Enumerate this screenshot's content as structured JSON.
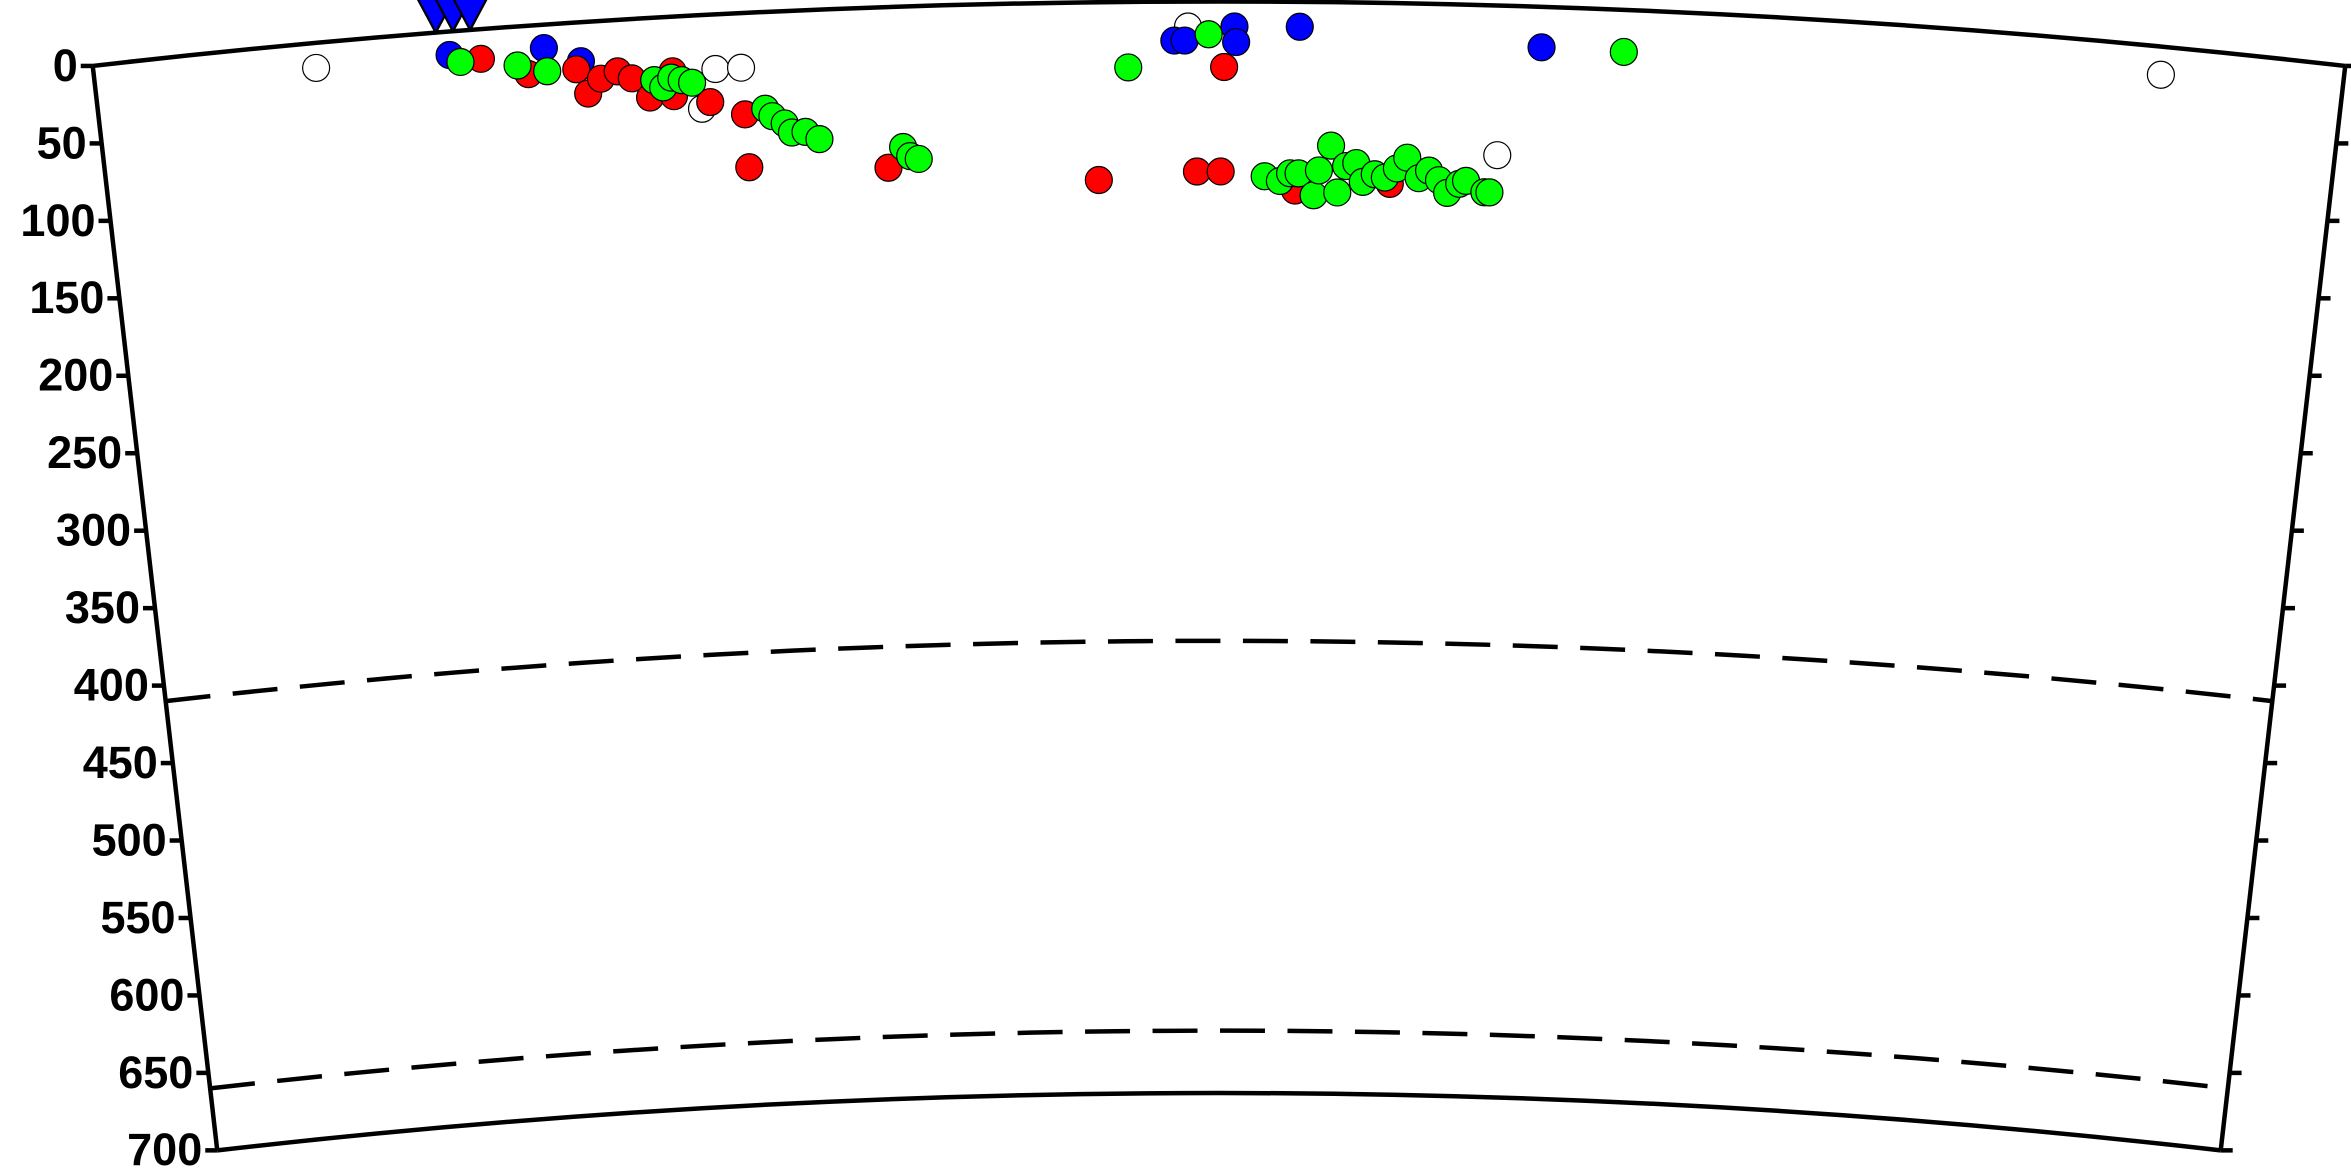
{
  "chart_data": {
    "type": "scatter",
    "xlim": [
      0,
      13.1
    ],
    "ylim": [
      0,
      700
    ],
    "yticks": [
      0,
      50,
      100,
      150,
      200,
      250,
      300,
      350,
      400,
      450,
      500,
      550,
      600,
      650,
      700
    ],
    "discontinuities": [
      410,
      660
    ],
    "stations": {
      "color": "#0000ff",
      "x": [
        2.0,
        2.1,
        2.2
      ]
    },
    "series": [
      {
        "color": "#ffffff",
        "x": [
          1.29,
          3.61,
          3.76,
          3.52,
          6.37,
          8.19,
          12.04
        ],
        "values": [
          16,
          35,
          35,
          60,
          16,
          96,
          18
        ]
      },
      {
        "color": "#0000ff",
        "x": [
          2.07,
          2.62,
          2.83,
          6.29,
          6.35,
          6.64,
          6.65,
          7.02,
          8.43
        ],
        "values": [
          15,
          15,
          25,
          25,
          25,
          16,
          26,
          16,
          26
        ]
      },
      {
        "color": "#ff0000",
        "x": [
          2.25,
          2.52,
          2.8,
          2.86,
          2.94,
          3.04,
          3.12,
          3.22,
          3.36,
          3.36,
          3.57,
          3.77,
          3.78,
          4.6,
          5.84,
          6.42,
          6.56,
          6.58,
          7.0,
          7.56
        ],
        "values": [
          19,
          31,
          30,
          46,
          37,
          33,
          38,
          51,
          35,
          51,
          56,
          65,
          99,
          103,
          114,
          109,
          109,
          42,
          121,
          116
        ]
      },
      {
        "color": "#00ff00",
        "x": [
          2.13,
          2.46,
          2.63,
          3.25,
          3.3,
          3.35,
          3.41,
          3.47,
          3.89,
          3.93,
          4.0,
          4.04,
          4.12,
          4.2,
          4.69,
          4.73,
          4.78,
          6.02,
          6.49,
          6.82,
          6.91,
          6.97,
          7.02,
          7.11,
          7.14,
          7.21,
          7.25,
          7.3,
          7.36,
          7.4,
          7.47,
          7.53,
          7.6,
          7.66,
          7.73,
          7.79,
          7.85,
          7.9,
          7.97,
          8.01,
          8.12,
          8.15,
          8.91
        ],
        "values": [
          20,
          25,
          30,
          40,
          45,
          39,
          41,
          43,
          62,
          67,
          72,
          78,
          78,
          83,
          90,
          96,
          98,
          42,
          21,
          112,
          115,
          110,
          110,
          124,
          108,
          92,
          122,
          105,
          103,
          115,
          110,
          112,
          106,
          99,
          112,
          107,
          113,
          121,
          115,
          113,
          120,
          120,
          27
        ]
      }
    ]
  }
}
